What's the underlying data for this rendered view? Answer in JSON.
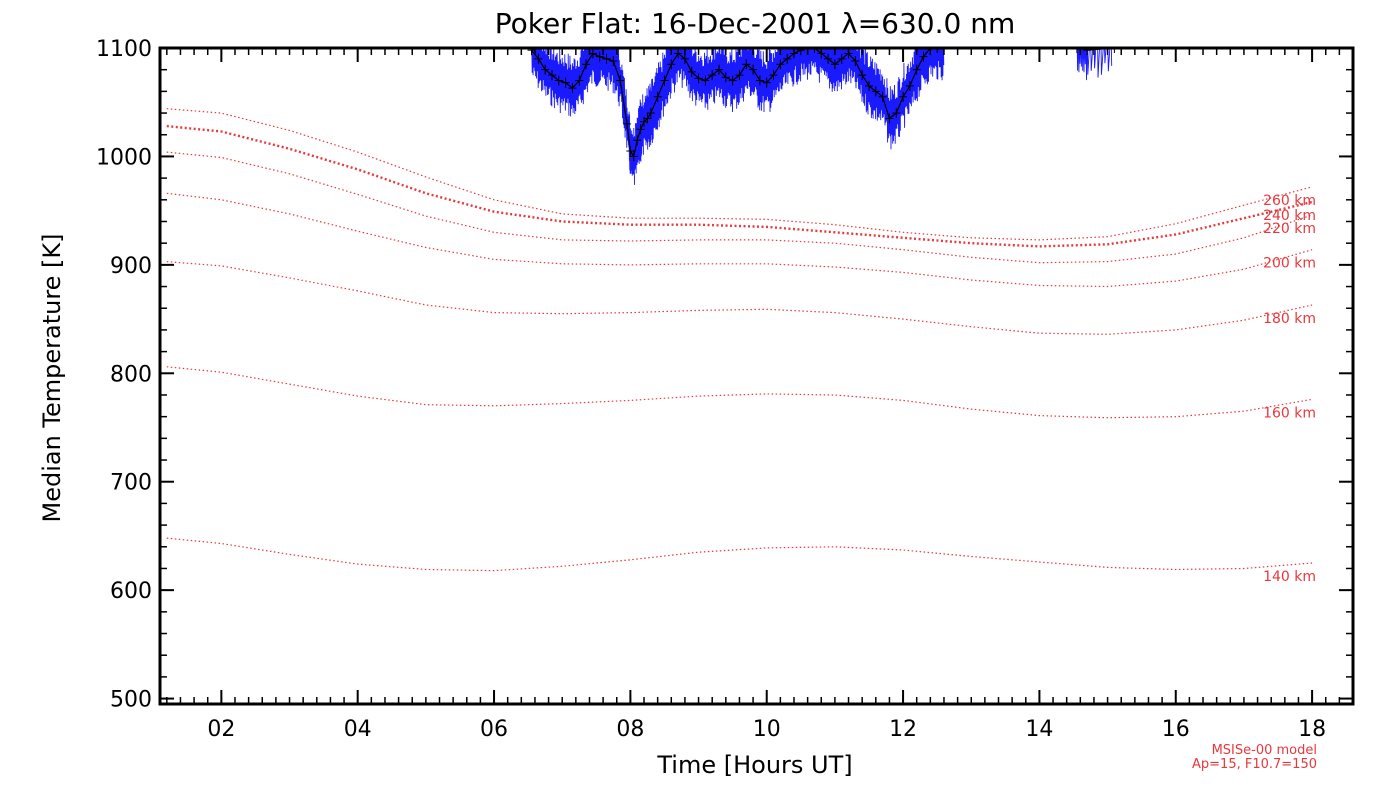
{
  "chart_data": {
    "type": "line",
    "title": "Poker Flat: 16-Dec-2001 λ=630.0 nm",
    "xlabel": "Time [Hours UT]",
    "ylabel": "Median Temperature [K]",
    "xlim": [
      1.1,
      18.6
    ],
    "ylim": [
      495,
      1100
    ],
    "x_ticks": [
      2,
      4,
      6,
      8,
      10,
      12,
      14,
      16,
      18
    ],
    "x_tick_labels": [
      "02",
      "04",
      "06",
      "08",
      "10",
      "12",
      "14",
      "16",
      "18"
    ],
    "y_ticks": [
      500,
      600,
      700,
      800,
      900,
      1000,
      1100
    ],
    "y_tick_labels": [
      "500",
      "600",
      "700",
      "800",
      "900",
      "1000",
      "1100"
    ],
    "grid": false,
    "model_series": [
      {
        "name": "140 km",
        "highlight": false,
        "x": [
          1.2,
          2,
          3,
          4,
          5,
          6,
          7,
          8,
          9,
          10,
          11,
          12,
          13,
          14,
          15,
          16,
          17,
          18
        ],
        "y": [
          648,
          643,
          633,
          624,
          619,
          618,
          622,
          628,
          635,
          639,
          640,
          637,
          631,
          626,
          621,
          619,
          620,
          625
        ]
      },
      {
        "name": "160 km",
        "highlight": false,
        "x": [
          1.2,
          2,
          3,
          4,
          5,
          6,
          7,
          8,
          9,
          10,
          11,
          12,
          13,
          14,
          15,
          16,
          17,
          18
        ],
        "y": [
          806,
          801,
          790,
          779,
          771,
          770,
          772,
          775,
          779,
          781,
          780,
          775,
          767,
          761,
          759,
          760,
          765,
          776
        ]
      },
      {
        "name": "180 km",
        "highlight": false,
        "x": [
          1.2,
          2,
          3,
          4,
          5,
          6,
          7,
          8,
          9,
          10,
          11,
          12,
          13,
          14,
          15,
          16,
          17,
          18
        ],
        "y": [
          903,
          899,
          888,
          876,
          863,
          856,
          855,
          856,
          858,
          859,
          856,
          850,
          843,
          837,
          836,
          840,
          849,
          863
        ]
      },
      {
        "name": "200 km",
        "highlight": false,
        "x": [
          1.2,
          2,
          3,
          4,
          5,
          6,
          7,
          8,
          9,
          10,
          11,
          12,
          13,
          14,
          15,
          16,
          17,
          18
        ],
        "y": [
          966,
          960,
          947,
          931,
          916,
          905,
          901,
          900,
          901,
          901,
          898,
          893,
          886,
          881,
          880,
          885,
          896,
          914
        ]
      },
      {
        "name": "220 km",
        "highlight": false,
        "x": [
          1.2,
          2,
          3,
          4,
          5,
          6,
          7,
          8,
          9,
          10,
          11,
          12,
          13,
          14,
          15,
          16,
          17,
          18
        ],
        "y": [
          1004,
          999,
          984,
          965,
          945,
          930,
          923,
          922,
          923,
          923,
          920,
          914,
          907,
          902,
          903,
          910,
          925,
          946
        ]
      },
      {
        "name": "240 km",
        "highlight": true,
        "x": [
          1.2,
          2,
          3,
          4,
          5,
          6,
          7,
          8,
          9,
          10,
          11,
          12,
          13,
          14,
          15,
          16,
          17,
          18
        ],
        "y": [
          1028,
          1023,
          1007,
          988,
          966,
          949,
          940,
          937,
          937,
          935,
          930,
          925,
          920,
          917,
          919,
          928,
          943,
          958
        ]
      },
      {
        "name": "260 km",
        "highlight": false,
        "x": [
          1.2,
          2,
          3,
          4,
          5,
          6,
          7,
          8,
          9,
          10,
          11,
          12,
          13,
          14,
          15,
          16,
          17,
          18
        ],
        "y": [
          1044,
          1040,
          1024,
          1004,
          981,
          960,
          947,
          943,
          943,
          942,
          937,
          930,
          925,
          923,
          926,
          938,
          955,
          972
        ]
      }
    ],
    "observed_series": {
      "x": [
        6.55,
        6.65,
        6.75,
        6.85,
        6.95,
        7.05,
        7.15,
        7.25,
        7.35,
        7.45,
        7.55,
        7.65,
        7.75,
        7.85,
        7.95,
        8.0,
        8.05,
        8.1,
        8.15,
        8.2,
        8.25,
        8.3,
        8.4,
        8.5,
        8.6,
        8.7,
        8.8,
        8.9,
        9.0,
        9.1,
        9.2,
        9.3,
        9.4,
        9.5,
        9.6,
        9.7,
        9.8,
        9.9,
        10.0,
        10.1,
        10.2,
        10.3,
        10.4,
        10.5,
        10.6,
        10.7,
        10.8,
        10.9,
        11.0,
        11.1,
        11.2,
        11.3,
        11.4,
        11.5,
        11.6,
        11.7,
        11.8,
        11.9,
        12.0,
        12.1,
        12.2,
        12.3,
        12.4,
        12.5,
        12.6
      ],
      "y": [
        1098,
        1090,
        1080,
        1075,
        1070,
        1068,
        1063,
        1070,
        1085,
        1095,
        1092,
        1090,
        1088,
        1070,
        1030,
        1005,
        1000,
        1015,
        1025,
        1032,
        1035,
        1040,
        1055,
        1070,
        1085,
        1095,
        1090,
        1078,
        1072,
        1070,
        1075,
        1080,
        1073,
        1070,
        1075,
        1085,
        1080,
        1070,
        1068,
        1075,
        1085,
        1090,
        1095,
        1098,
        1100,
        1100,
        1095,
        1090,
        1085,
        1090,
        1095,
        1088,
        1075,
        1065,
        1060,
        1055,
        1035,
        1040,
        1055,
        1065,
        1080,
        1092,
        1100,
        1100,
        1100
      ]
    },
    "observed_series_extra": {
      "x": [
        14.55,
        14.7,
        15.1
      ],
      "y": [
        1100,
        1098,
        1100
      ]
    }
  },
  "footnote": {
    "line1": "MSISe-00 model",
    "line2": "Ap=15, F10.7=150"
  },
  "colors": {
    "model": "#e8383c",
    "observed": "#1a1aff",
    "median": "#000000",
    "axis": "#000000"
  }
}
